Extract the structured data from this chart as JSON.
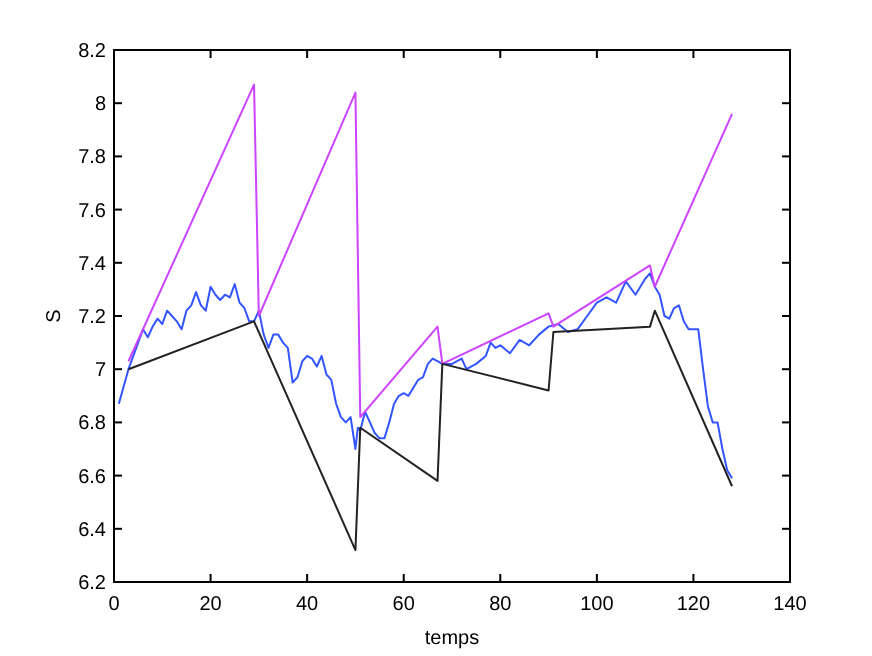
{
  "chart_data": {
    "type": "line",
    "xlabel": "temps",
    "ylabel": "S",
    "xlim": [
      0,
      140
    ],
    "xticks": [
      0,
      20,
      40,
      60,
      80,
      100,
      120,
      140
    ],
    "ylim": [
      6.2,
      8.2
    ],
    "yticks": [
      6.2,
      6.4,
      6.6,
      6.8,
      7,
      7.2,
      7.4,
      7.6,
      7.8,
      8,
      8.2
    ],
    "grid": false,
    "marker": "none",
    "line_style": "solid",
    "series": [
      {
        "color": "#3355ff",
        "x": [
          1,
          3,
          5,
          6,
          7,
          8,
          9,
          10,
          11,
          12,
          13,
          14,
          15,
          16,
          17,
          18,
          19,
          20,
          21,
          22,
          23,
          24,
          25,
          26,
          27,
          28,
          29,
          30,
          31,
          32,
          33,
          34,
          35,
          36,
          37,
          38,
          39,
          40,
          41,
          42,
          43,
          44,
          45,
          46,
          47,
          48,
          49,
          50,
          50.5,
          51,
          52,
          53,
          54,
          55,
          56,
          57,
          58,
          59,
          60,
          61,
          62,
          63,
          64,
          65,
          66,
          67,
          68,
          70,
          72,
          73,
          75,
          77,
          78,
          79,
          80,
          82,
          84,
          86,
          88,
          90,
          92,
          94,
          96,
          98,
          100,
          102,
          104,
          106,
          108,
          110,
          111,
          112,
          113,
          114,
          115,
          116,
          117,
          118,
          119,
          120,
          121,
          122,
          123,
          124,
          125,
          126,
          127,
          128
        ],
        "values": [
          6.87,
          7.0,
          7.1,
          7.15,
          7.12,
          7.16,
          7.19,
          7.17,
          7.22,
          7.2,
          7.18,
          7.15,
          7.22,
          7.24,
          7.29,
          7.24,
          7.22,
          7.31,
          7.28,
          7.26,
          7.28,
          7.27,
          7.32,
          7.25,
          7.23,
          7.18,
          7.18,
          7.22,
          7.13,
          7.08,
          7.13,
          7.13,
          7.1,
          7.08,
          6.95,
          6.97,
          7.03,
          7.05,
          7.04,
          7.01,
          7.05,
          6.98,
          6.96,
          6.87,
          6.82,
          6.8,
          6.82,
          6.7,
          6.78,
          6.77,
          6.84,
          6.8,
          6.76,
          6.74,
          6.74,
          6.8,
          6.87,
          6.9,
          6.91,
          6.9,
          6.93,
          6.96,
          6.97,
          7.02,
          7.04,
          7.03,
          7.02,
          7.02,
          7.04,
          7.0,
          7.02,
          7.05,
          7.1,
          7.08,
          7.09,
          7.06,
          7.11,
          7.09,
          7.13,
          7.16,
          7.17,
          7.14,
          7.15,
          7.2,
          7.25,
          7.27,
          7.25,
          7.33,
          7.28,
          7.34,
          7.36,
          7.31,
          7.28,
          7.2,
          7.19,
          7.23,
          7.24,
          7.18,
          7.15,
          7.15,
          7.15,
          7.0,
          6.86,
          6.8,
          6.8,
          6.7,
          6.62,
          6.59
        ]
      },
      {
        "color": "#cc44ff",
        "x": [
          3,
          29,
          30,
          50,
          51,
          67,
          68,
          90,
          91,
          111,
          112,
          128
        ],
        "values": [
          7.03,
          8.07,
          7.2,
          8.04,
          6.82,
          7.16,
          7.02,
          7.21,
          7.16,
          7.39,
          7.31,
          7.96
        ]
      },
      {
        "color": "#222222",
        "x": [
          3,
          29,
          50,
          51,
          67,
          68,
          90,
          91,
          111,
          112,
          128
        ],
        "values": [
          7.0,
          7.18,
          6.32,
          6.78,
          6.58,
          7.02,
          6.92,
          7.14,
          7.16,
          7.22,
          6.56
        ]
      }
    ]
  }
}
